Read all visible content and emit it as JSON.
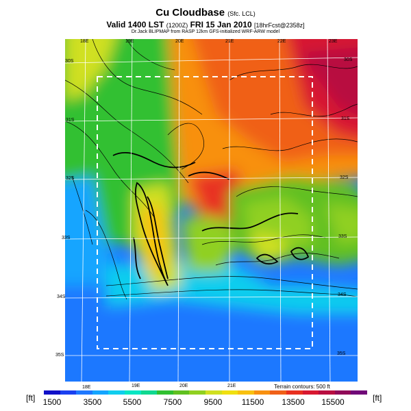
{
  "title": {
    "main": "Cu Cloudbase",
    "qualifier": "(Sfc. LCL)"
  },
  "subtitle": {
    "valid": "Valid 1400 LST",
    "code": "(1200Z)",
    "date": "FRI 15 Jan 2010",
    "forecast": "[18hrFcst@2358z]"
  },
  "credit": "Dr.Jack BLIPMAP from RASP 12km GFS-initialized WRF-ARW model",
  "map": {
    "lon_labels": [
      "18E",
      "19E",
      "20E",
      "21E",
      "22E",
      "23E"
    ],
    "lat_labels": [
      "30S",
      "31S",
      "32S",
      "33S",
      "34S",
      "35S"
    ]
  },
  "terrain_note": "Terrain contours: 500 ft",
  "legend": {
    "unit": "[ft]",
    "tick_labels": [
      "1500",
      "3500",
      "5500",
      "7500",
      "9500",
      "11500",
      "13500",
      "15500"
    ],
    "colors": [
      "#1010c8",
      "#1a40f0",
      "#1e78ff",
      "#14a5ff",
      "#10cdee",
      "#08e6c3",
      "#10d890",
      "#30c030",
      "#60c020",
      "#90d020",
      "#d0e020",
      "#f0e010",
      "#f8c010",
      "#f89010",
      "#f06018",
      "#e83020",
      "#d81830",
      "#b80e40",
      "#900a58",
      "#700878"
    ]
  }
}
